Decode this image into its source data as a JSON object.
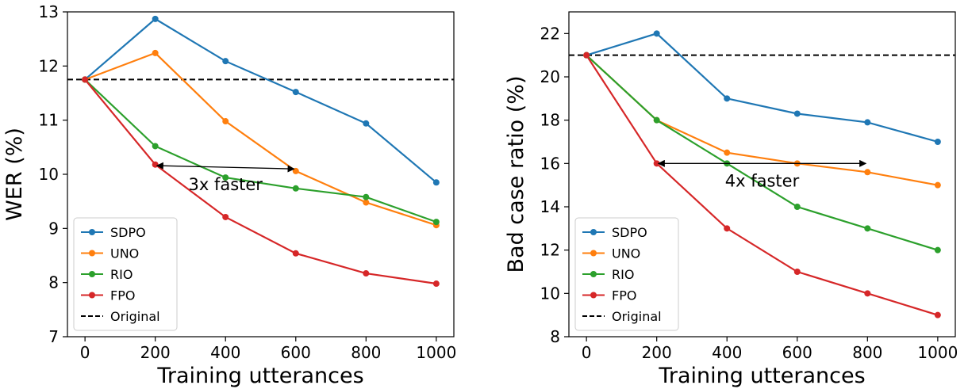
{
  "chart_data": [
    {
      "type": "line",
      "xlabel": "Training utterances",
      "ylabel": "WER (%)",
      "xlim": [
        -50,
        1050
      ],
      "ylim": [
        7,
        13
      ],
      "xticks": [
        0,
        200,
        400,
        600,
        800,
        1000
      ],
      "yticks": [
        7,
        8,
        9,
        10,
        11,
        12,
        13
      ],
      "x": [
        0,
        200,
        400,
        600,
        800,
        1000
      ],
      "series": [
        {
          "name": "SDPO",
          "color": "#1f77b4",
          "values": [
            11.75,
            12.87,
            12.09,
            11.52,
            10.94,
            9.85
          ]
        },
        {
          "name": "UNO",
          "color": "#ff7f0e",
          "values": [
            11.75,
            12.24,
            10.98,
            10.06,
            9.48,
            9.06
          ]
        },
        {
          "name": "RIO",
          "color": "#2ca02c",
          "values": [
            11.75,
            10.52,
            9.94,
            9.74,
            9.58,
            9.12
          ]
        },
        {
          "name": "FPO",
          "color": "#d62728",
          "values": [
            11.75,
            10.18,
            9.21,
            8.54,
            8.17,
            7.98
          ]
        }
      ],
      "baseline": {
        "name": "Original",
        "value": 11.75
      },
      "annotation": {
        "text": "3x faster",
        "from": [
          200,
          10.16
        ],
        "to": [
          600,
          10.1
        ]
      },
      "legend": "lower-left",
      "grid": false
    },
    {
      "type": "line",
      "xlabel": "Training utterances",
      "ylabel": "Bad case ratio (%)",
      "xlim": [
        -50,
        1050
      ],
      "ylim": [
        8,
        23
      ],
      "xticks": [
        0,
        200,
        400,
        600,
        800,
        1000
      ],
      "yticks": [
        8,
        10,
        12,
        14,
        16,
        18,
        20,
        22
      ],
      "x": [
        0,
        200,
        400,
        600,
        800,
        1000
      ],
      "series": [
        {
          "name": "SDPO",
          "color": "#1f77b4",
          "values": [
            21,
            22,
            19,
            18.3,
            17.9,
            17
          ]
        },
        {
          "name": "UNO",
          "color": "#ff7f0e",
          "values": [
            21,
            18,
            16.5,
            16,
            15.6,
            15
          ]
        },
        {
          "name": "RIO",
          "color": "#2ca02c",
          "values": [
            21,
            18,
            16,
            14,
            13,
            12
          ]
        },
        {
          "name": "FPO",
          "color": "#d62728",
          "values": [
            21,
            16,
            13,
            11,
            10,
            9
          ]
        }
      ],
      "baseline": {
        "name": "Original",
        "value": 21
      },
      "annotation": {
        "text": "4x faster",
        "from": [
          200,
          16
        ],
        "to": [
          800,
          16
        ]
      },
      "legend": "lower-left",
      "grid": false
    }
  ]
}
